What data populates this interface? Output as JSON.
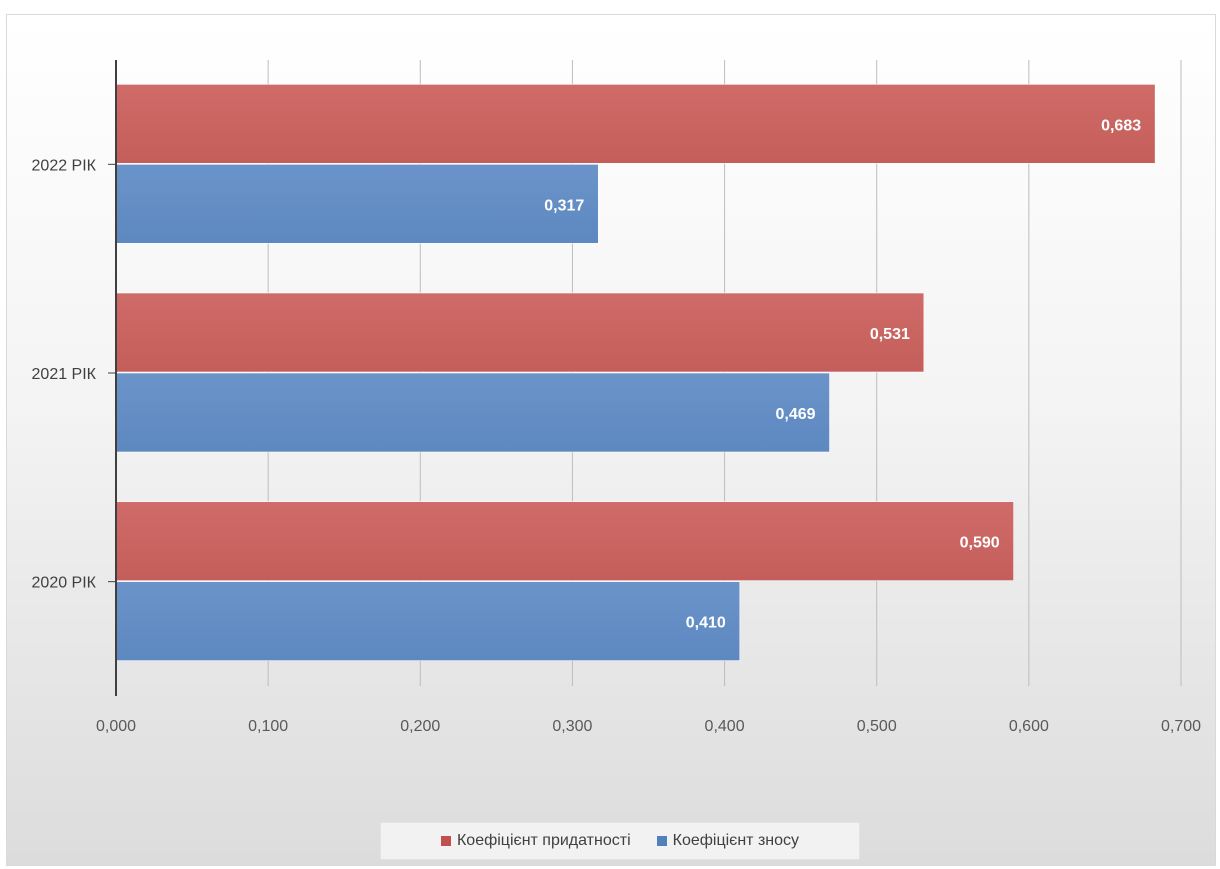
{
  "chart_data": {
    "type": "bar",
    "orientation": "horizontal",
    "categories": [
      "2022 РІК",
      "2021 РІК",
      "2020 РІК"
    ],
    "series": [
      {
        "name": "Коефіцієнт придатності",
        "color": "#C0504D",
        "values": [
          0.683,
          0.531,
          0.59
        ],
        "labels": [
          "0,683",
          "0,531",
          "0,590"
        ]
      },
      {
        "name": "Коефіцієнт зносу",
        "color": "#4F81BD",
        "values": [
          0.317,
          0.469,
          0.41
        ],
        "labels": [
          "0,317",
          "0,469",
          "0,410"
        ]
      }
    ],
    "xlim": [
      0,
      0.7
    ],
    "xticks": [
      0,
      0.1,
      0.2,
      0.3,
      0.4,
      0.5,
      0.6,
      0.7
    ],
    "xtick_labels": [
      "0,000",
      "0,100",
      "0,200",
      "0,300",
      "0,400",
      "0,500",
      "0,600",
      "0,700"
    ],
    "grid": true,
    "legend_position": "bottom"
  }
}
